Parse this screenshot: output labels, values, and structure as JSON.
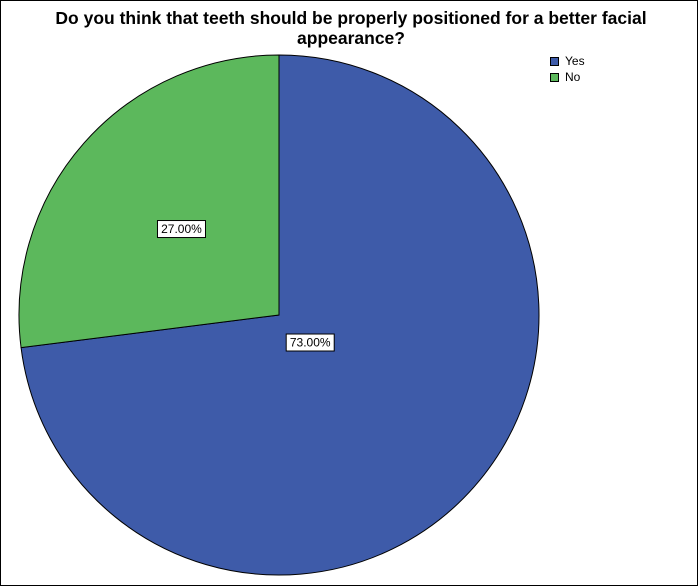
{
  "chart_data": {
    "type": "pie",
    "title": "Do you think that teeth should be properly positioned for a better facial appearance?",
    "categories": [
      "Yes",
      "No"
    ],
    "values": [
      73.0,
      27.0
    ],
    "data_labels": [
      "73.00%",
      "27.00%"
    ],
    "colors": [
      "#3e5ba9",
      "#5cb85c"
    ],
    "legend": "top-right"
  }
}
